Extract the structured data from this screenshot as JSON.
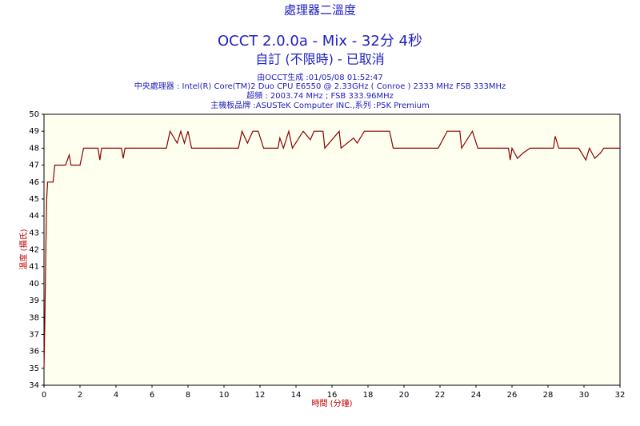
{
  "chart_data": {
    "type": "line",
    "title": "處理器二溫度",
    "subtitle": "OCCT 2.0.0a - Mix - 32分 4秒",
    "subtitle2": "自訂 (不限時) - 已取消",
    "info": [
      "由OCCT生成 :01/05/08 01:52:47",
      "中央處理器 : Intel(R) Core(TM)2 Duo CPU E6550 @ 2.33GHz ( Conroe ) 2333 MHz FSB 333MHz",
      "超頻 : 2003.74 MHz ; FSB 333.96MHz",
      "主機板品牌 :ASUSTeK Computer INC.,系列 :P5K Premium"
    ],
    "ylabel": "溫度 (攝氏)",
    "xlabel": "時間 (分鐘)",
    "color": "#8b0000",
    "grid": false,
    "xlim": [
      0,
      32
    ],
    "xticks": [
      0,
      2,
      4,
      6,
      8,
      10,
      12,
      14,
      16,
      18,
      20,
      22,
      24,
      26,
      28,
      30,
      32
    ],
    "ylim": [
      34,
      50
    ],
    "yticks": [
      34,
      35,
      36,
      37,
      38,
      39,
      40,
      41,
      42,
      43,
      44,
      45,
      46,
      47,
      48,
      49,
      50
    ],
    "x": [
      0,
      0.05,
      0.1,
      0.15,
      0.2,
      0.5,
      0.6,
      1.2,
      1.4,
      1.5,
      2.0,
      2.2,
      3.0,
      3.1,
      3.2,
      4.3,
      4.4,
      4.5,
      6.8,
      7.0,
      7.4,
      7.6,
      7.8,
      8.0,
      8.2,
      10.8,
      11.0,
      11.3,
      11.6,
      11.9,
      12.2,
      13.0,
      13.1,
      13.3,
      13.6,
      13.8,
      14.4,
      14.8,
      15.0,
      15.5,
      15.6,
      16.4,
      16.5,
      17.2,
      17.4,
      17.8,
      19.2,
      19.4,
      21.9,
      22.4,
      23.1,
      23.2,
      23.8,
      24.1,
      25.8,
      25.9,
      26.0,
      26.3,
      26.6,
      27.0,
      28.3,
      28.4,
      28.6,
      29.7,
      30.1,
      30.3,
      30.6,
      30.9,
      31.1,
      32
    ],
    "values": [
      35,
      38,
      42,
      45,
      46,
      46,
      47,
      47,
      47.6,
      47,
      47,
      48,
      48,
      47.3,
      48,
      48,
      47.4,
      48,
      48,
      49,
      48.3,
      49,
      48.3,
      49,
      48,
      48,
      49,
      48.3,
      49,
      49,
      48,
      48,
      48.6,
      48,
      49,
      48,
      49,
      48.5,
      49,
      49,
      48,
      49,
      48,
      48.6,
      48.3,
      49,
      49,
      48,
      48,
      49,
      49,
      48,
      49,
      48,
      48,
      47.3,
      48,
      47.4,
      47.7,
      48,
      48,
      48.7,
      48,
      48,
      47.3,
      48,
      47.4,
      47.7,
      48,
      48
    ]
  }
}
